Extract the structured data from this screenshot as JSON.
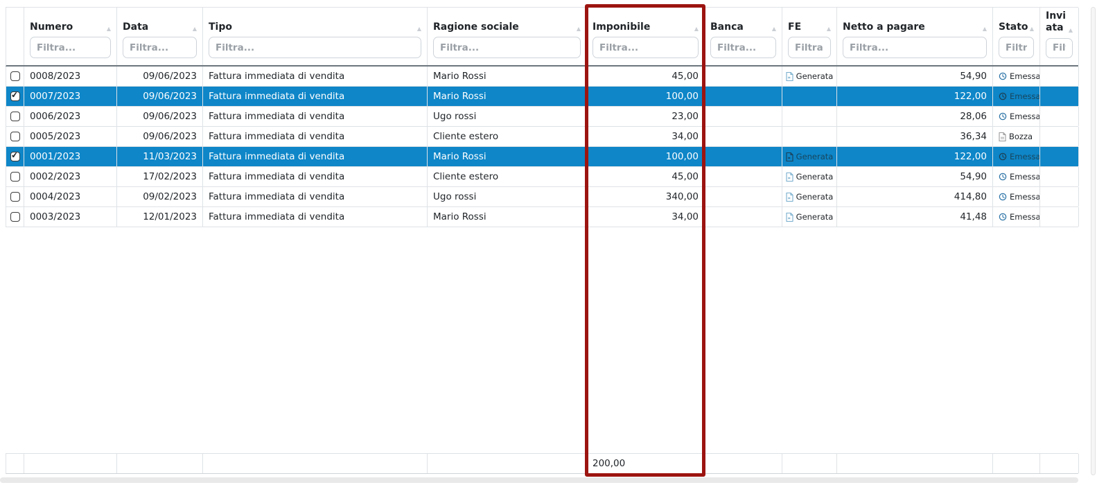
{
  "colors": {
    "selected_row_bg": "#0e86c8",
    "highlight_border": "#9c1410",
    "row_border": "#dee2e6",
    "header_border": "#6c757d"
  },
  "table": {
    "columns": [
      {
        "key": "sel",
        "label": "",
        "filter_placeholder": null,
        "align": "center",
        "sortable": false
      },
      {
        "key": "numero",
        "label": "Numero",
        "filter_placeholder": "Filtra...",
        "align": "left",
        "sortable": true
      },
      {
        "key": "data",
        "label": "Data",
        "filter_placeholder": "Filtra...",
        "align": "right",
        "sortable": true
      },
      {
        "key": "tipo",
        "label": "Tipo",
        "filter_placeholder": "Filtra...",
        "align": "left",
        "sortable": true
      },
      {
        "key": "ragione_sociale",
        "label": "Ragione sociale",
        "filter_placeholder": "Filtra...",
        "align": "left",
        "sortable": true
      },
      {
        "key": "imponibile",
        "label": "Imponibile",
        "filter_placeholder": "Filtra...",
        "align": "right",
        "sortable": true
      },
      {
        "key": "banca",
        "label": "Banca",
        "filter_placeholder": "Filtra...",
        "align": "left",
        "sortable": true
      },
      {
        "key": "fe",
        "label": "FE",
        "filter_placeholder": "Filtra...",
        "align": "center",
        "sortable": true
      },
      {
        "key": "netto_a_pagare",
        "label": "Netto a pagare",
        "filter_placeholder": "Filtra...",
        "align": "right",
        "sortable": true
      },
      {
        "key": "stato",
        "label": "Stato",
        "filter_placeholder": "Filtra...",
        "align": "left",
        "sortable": true
      },
      {
        "key": "inviata",
        "label": "Inviata",
        "filter_placeholder": "Filtra...",
        "align": "left",
        "sortable": true
      }
    ],
    "rows": [
      {
        "selected": false,
        "numero": "0008/2023",
        "data": "09/06/2023",
        "tipo": "Fattura immediata di vendita",
        "ragione_sociale": "Mario Rossi",
        "imponibile": "45,00",
        "banca": "",
        "fe": {
          "label": "Generata",
          "icon": "xml-file-icon"
        },
        "netto_a_pagare": "54,90",
        "stato": {
          "label": "Emessa",
          "icon": "clock-icon"
        },
        "inviata": ""
      },
      {
        "selected": true,
        "numero": "0007/2023",
        "data": "09/06/2023",
        "tipo": "Fattura immediata di vendita",
        "ragione_sociale": "Mario Rossi",
        "imponibile": "100,00",
        "banca": "",
        "fe": null,
        "netto_a_pagare": "122,00",
        "stato": {
          "label": "Emessa",
          "icon": "clock-icon"
        },
        "inviata": ""
      },
      {
        "selected": false,
        "numero": "0006/2023",
        "data": "09/06/2023",
        "tipo": "Fattura immediata di vendita",
        "ragione_sociale": "Ugo rossi",
        "imponibile": "23,00",
        "banca": "",
        "fe": null,
        "netto_a_pagare": "28,06",
        "stato": {
          "label": "Emessa",
          "icon": "clock-icon"
        },
        "inviata": ""
      },
      {
        "selected": false,
        "numero": "0005/2023",
        "data": "09/06/2023",
        "tipo": "Fattura immediata di vendita",
        "ragione_sociale": "Cliente estero",
        "imponibile": "34,00",
        "banca": "",
        "fe": null,
        "netto_a_pagare": "36,34",
        "stato": {
          "label": "Bozza",
          "icon": "draft-file-icon"
        },
        "inviata": ""
      },
      {
        "selected": true,
        "numero": "0001/2023",
        "data": "11/03/2023",
        "tipo": "Fattura immediata di vendita",
        "ragione_sociale": "Mario Rossi",
        "imponibile": "100,00",
        "banca": "",
        "fe": {
          "label": "Generata",
          "icon": "xml-file-icon"
        },
        "netto_a_pagare": "122,00",
        "stato": {
          "label": "Emessa",
          "icon": "clock-icon"
        },
        "inviata": ""
      },
      {
        "selected": false,
        "numero": "0002/2023",
        "data": "17/02/2023",
        "tipo": "Fattura immediata di vendita",
        "ragione_sociale": "Cliente estero",
        "imponibile": "45,00",
        "banca": "",
        "fe": {
          "label": "Generata",
          "icon": "xml-file-icon"
        },
        "netto_a_pagare": "54,90",
        "stato": {
          "label": "Emessa",
          "icon": "clock-icon"
        },
        "inviata": ""
      },
      {
        "selected": false,
        "numero": "0004/2023",
        "data": "09/02/2023",
        "tipo": "Fattura immediata di vendita",
        "ragione_sociale": "Ugo rossi",
        "imponibile": "340,00",
        "banca": "",
        "fe": {
          "label": "Generata",
          "icon": "xml-file-icon"
        },
        "netto_a_pagare": "414,80",
        "stato": {
          "label": "Emessa",
          "icon": "clock-icon"
        },
        "inviata": ""
      },
      {
        "selected": false,
        "numero": "0003/2023",
        "data": "12/01/2023",
        "tipo": "Fattura immediata di vendita",
        "ragione_sociale": "Mario Rossi",
        "imponibile": "34,00",
        "banca": "",
        "fe": {
          "label": "Generata",
          "icon": "xml-file-icon"
        },
        "netto_a_pagare": "41,48",
        "stato": {
          "label": "Emessa",
          "icon": "clock-icon"
        },
        "inviata": ""
      }
    ],
    "footer": {
      "imponibile_total": "200,00"
    }
  },
  "highlight": {
    "column": "imponibile"
  }
}
